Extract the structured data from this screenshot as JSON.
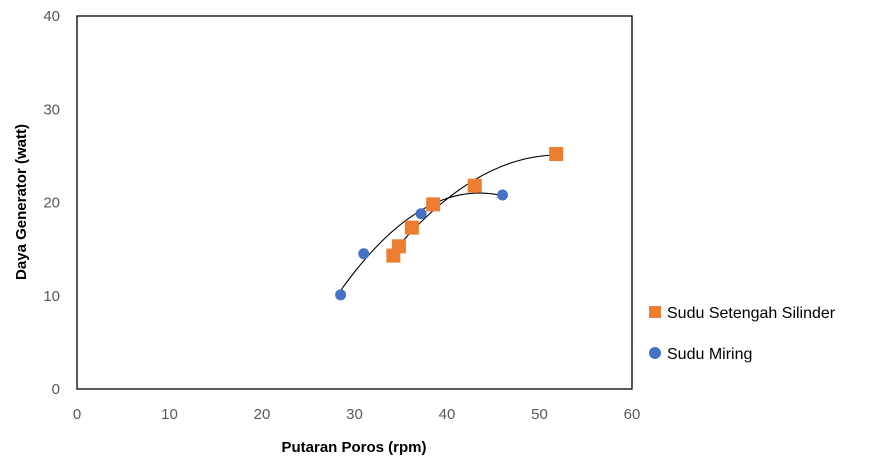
{
  "chart_data": {
    "type": "scatter",
    "title": "",
    "xlabel": "Putaran Poros (rpm)",
    "ylabel": "Daya Generator (watt)",
    "xlim": [
      0,
      60
    ],
    "ylim": [
      0,
      40
    ],
    "xticks": [
      0,
      10,
      20,
      30,
      40,
      50,
      60
    ],
    "yticks": [
      0,
      10,
      20,
      30,
      40
    ],
    "grid": false,
    "legend_position": "right",
    "series": [
      {
        "name": "Sudu Setengah Silinder",
        "marker": "square",
        "color": "#ED7D31",
        "points": [
          {
            "x": 34.2,
            "y": 14.3
          },
          {
            "x": 34.8,
            "y": 15.3
          },
          {
            "x": 36.2,
            "y": 17.3
          },
          {
            "x": 38.5,
            "y": 19.8
          },
          {
            "x": 43.0,
            "y": 21.8
          },
          {
            "x": 51.8,
            "y": 25.2
          }
        ],
        "trendline": {
          "type": "polynomial",
          "x_range": [
            34.2,
            51.8
          ]
        }
      },
      {
        "name": "Sudu Miring",
        "marker": "circle",
        "color": "#4472C4",
        "points": [
          {
            "x": 28.5,
            "y": 10.1
          },
          {
            "x": 31.0,
            "y": 14.5
          },
          {
            "x": 37.2,
            "y": 18.8
          },
          {
            "x": 46.0,
            "y": 20.8
          }
        ],
        "trendline": {
          "type": "polynomial",
          "x_range": [
            28.5,
            46.0
          ]
        }
      }
    ]
  }
}
